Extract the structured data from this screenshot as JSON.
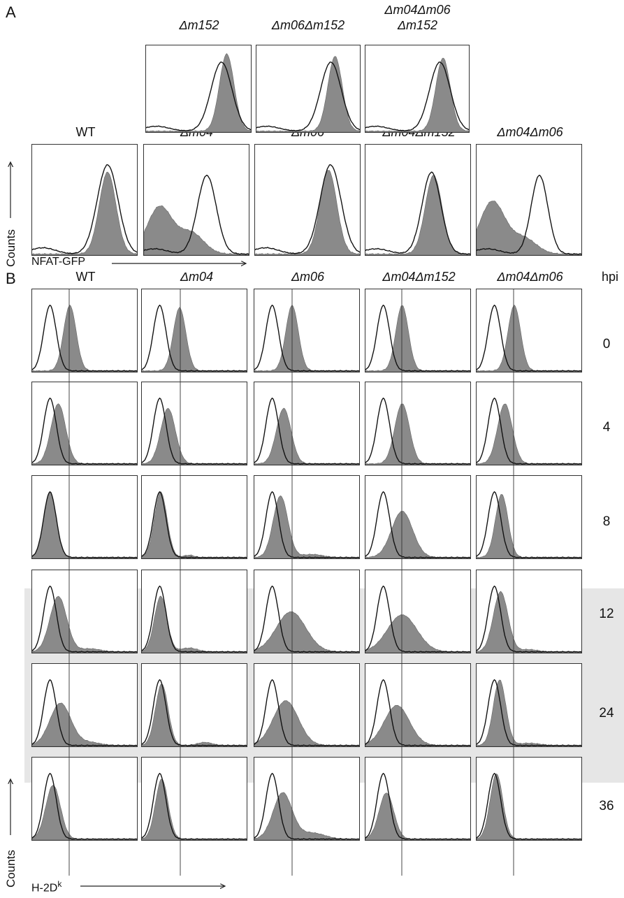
{
  "panels": {
    "a": "A",
    "b": "B"
  },
  "panel_a": {
    "top_row": [
      "Δm152",
      "Δm06Δm152",
      "Δm04Δm06\nΔm152"
    ],
    "bottom_row": [
      "WT",
      "Δm04",
      "Δm06",
      "Δm04Δm152",
      "Δm04Δm06"
    ],
    "y_axis": "Counts",
    "x_axis": "NFAT-GFP"
  },
  "panel_b": {
    "columns": [
      "WT",
      "Δm04",
      "Δm06",
      "Δm04Δm152",
      "Δm04Δm06"
    ],
    "row_header": "hpi",
    "rows": [
      "0",
      "4",
      "8",
      "12",
      "24",
      "36"
    ],
    "y_axis": "Counts",
    "x_axis_main": "H-2D",
    "x_axis_sup": "k",
    "highlight_rows": [
      "12",
      "24"
    ],
    "highlight_color": "#e6e6e6"
  },
  "colors": {
    "filled": "#8a8a8a",
    "outline": "#111111"
  }
}
